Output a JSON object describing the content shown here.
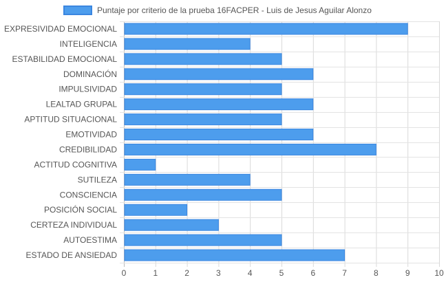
{
  "chart_data": {
    "type": "bar",
    "orientation": "horizontal",
    "categories": [
      "EXPRESIVIDAD EMOCIONAL",
      "INTELIGENCIA",
      "ESTABILIDAD EMOCIONAL",
      "DOMINACIÓN",
      "IMPULSIVIDAD",
      "LEALTAD GRUPAL",
      "APTITUD SITUACIONAL",
      "EMOTIVIDAD",
      "CREDIBILIDAD",
      "ACTITUD COGNITIVA",
      "SUTILEZA",
      "CONSCIENCIA",
      "POSICIÓN SOCIAL",
      "CERTEZA INDIVIDUAL",
      "AUTOESTIMA",
      "ESTADO DE ANSIEDAD"
    ],
    "series": [
      {
        "name": "Puntaje por criterio de la prueba 16FACPER - Luis de Jesus Aguilar Alonzo",
        "values": [
          9,
          4,
          5,
          6,
          5,
          6,
          5,
          6,
          8,
          1,
          4,
          5,
          2,
          3,
          5,
          7
        ],
        "color": "#4d9ded",
        "border_color": "#3a86e0"
      }
    ],
    "xlim": [
      0,
      10
    ],
    "x_ticks": [
      "0",
      "1",
      "2",
      "3",
      "4",
      "5",
      "6",
      "7",
      "8",
      "9",
      "10"
    ],
    "grid": true,
    "legend_position": "top",
    "title": "",
    "xlabel": "",
    "ylabel": ""
  }
}
